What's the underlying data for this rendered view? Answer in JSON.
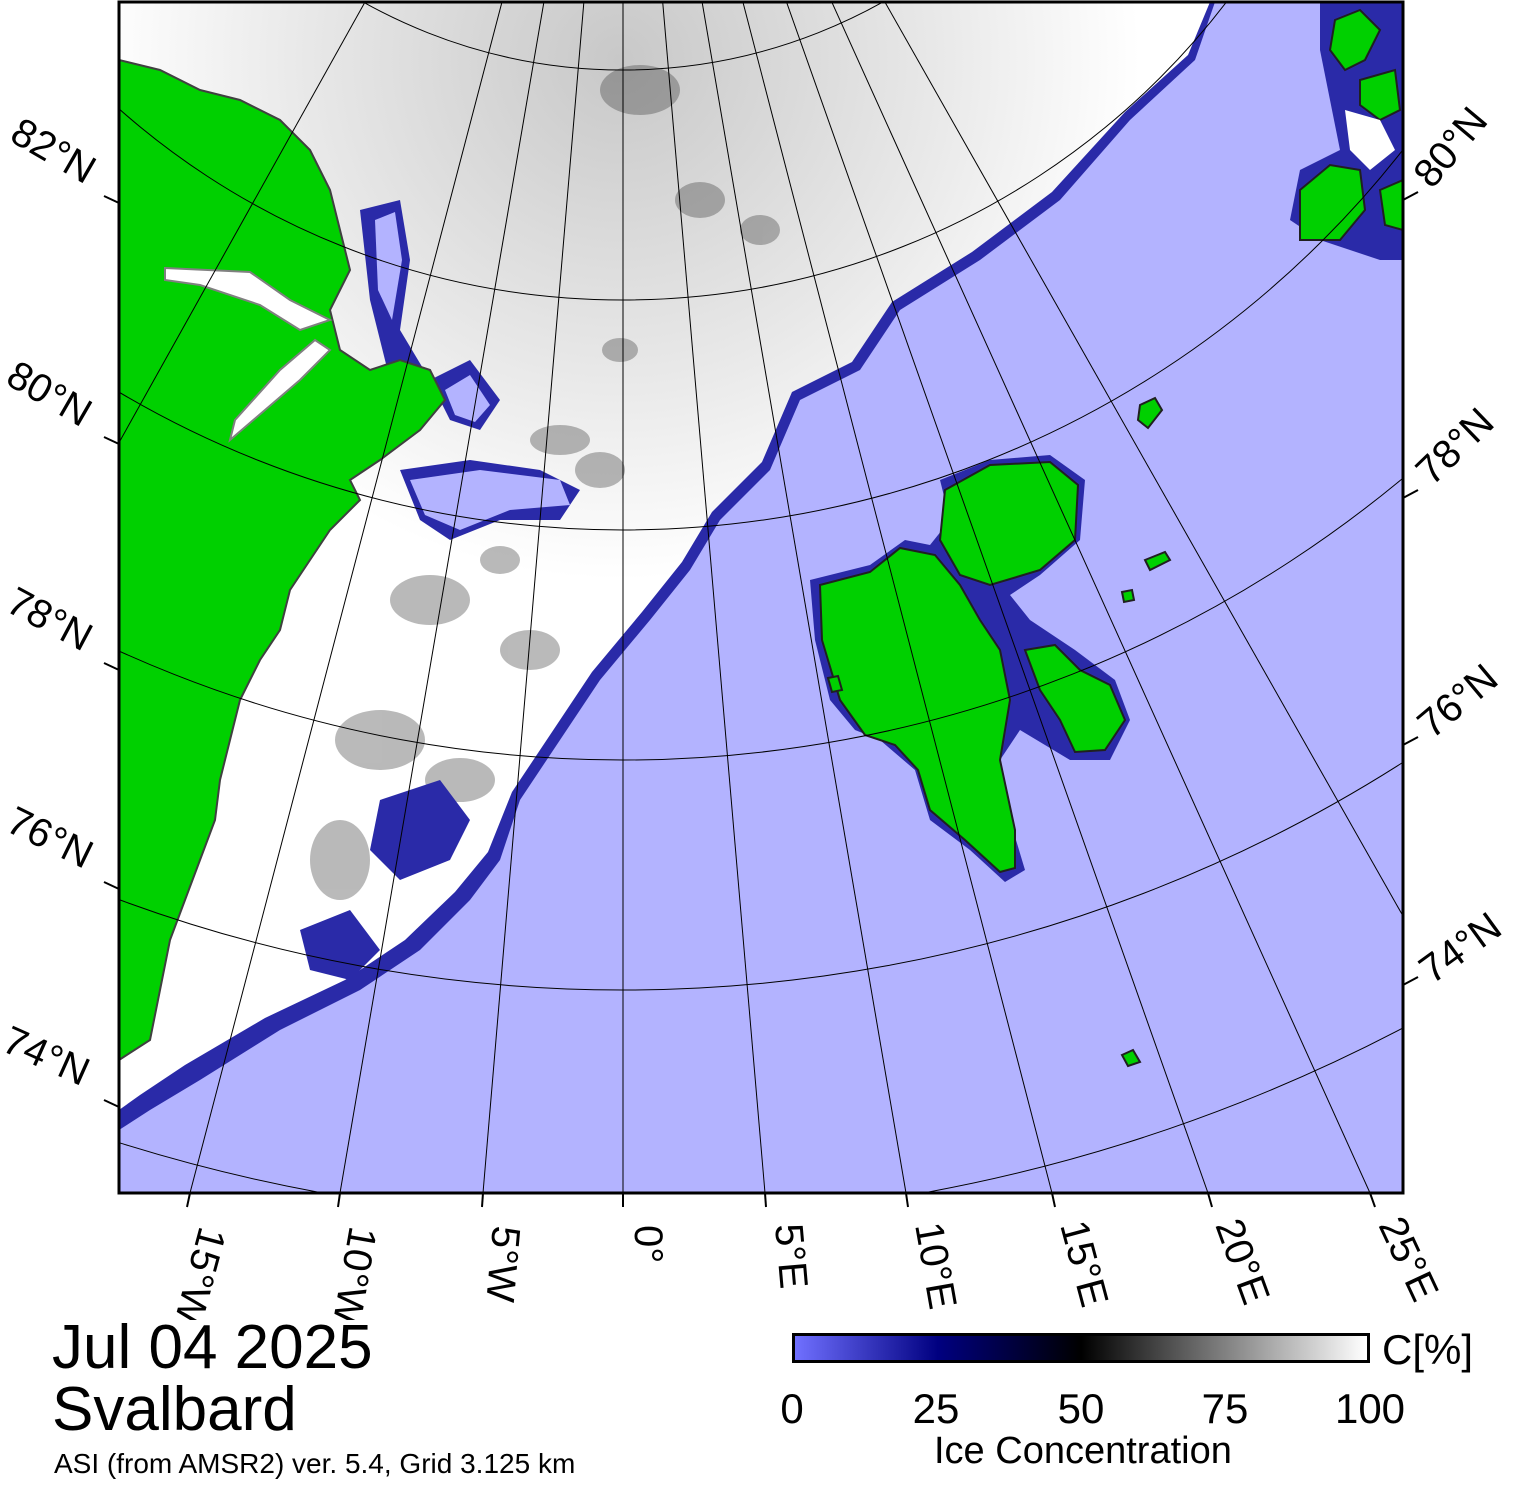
{
  "map": {
    "colors": {
      "open_water": "#b3b3ff",
      "land": "#00d000",
      "ice_full": "#ffffff",
      "ice_mid": "#000000",
      "ice_low": "#000080",
      "coast": "#808080",
      "frame": "#000000"
    },
    "lat_labels_left": [
      "82°N",
      "80°N",
      "78°N",
      "76°N",
      "74°N"
    ],
    "lat_labels_right": [
      "80°N",
      "78°N",
      "76°N",
      "74°N"
    ],
    "lon_labels_bottom": [
      "15°W",
      "10°W",
      "5°W",
      "0°",
      "5°E",
      "10°E",
      "15°E",
      "20°E",
      "25°E"
    ]
  },
  "caption": {
    "date": "Jul 04 2025",
    "region": "Svalbard",
    "source": "ASI (from AMSR2) ver. 5.4,  Grid 3.125 km"
  },
  "colorbar": {
    "unit": "C[%]",
    "ticks": [
      "0",
      "25",
      "50",
      "75",
      "100"
    ],
    "tick_values": [
      0,
      25,
      50,
      75,
      100
    ],
    "title": "Ice Concentration",
    "gradient": [
      "#7070ff",
      "#000080",
      "#000000",
      "#808080",
      "#ffffff"
    ]
  }
}
